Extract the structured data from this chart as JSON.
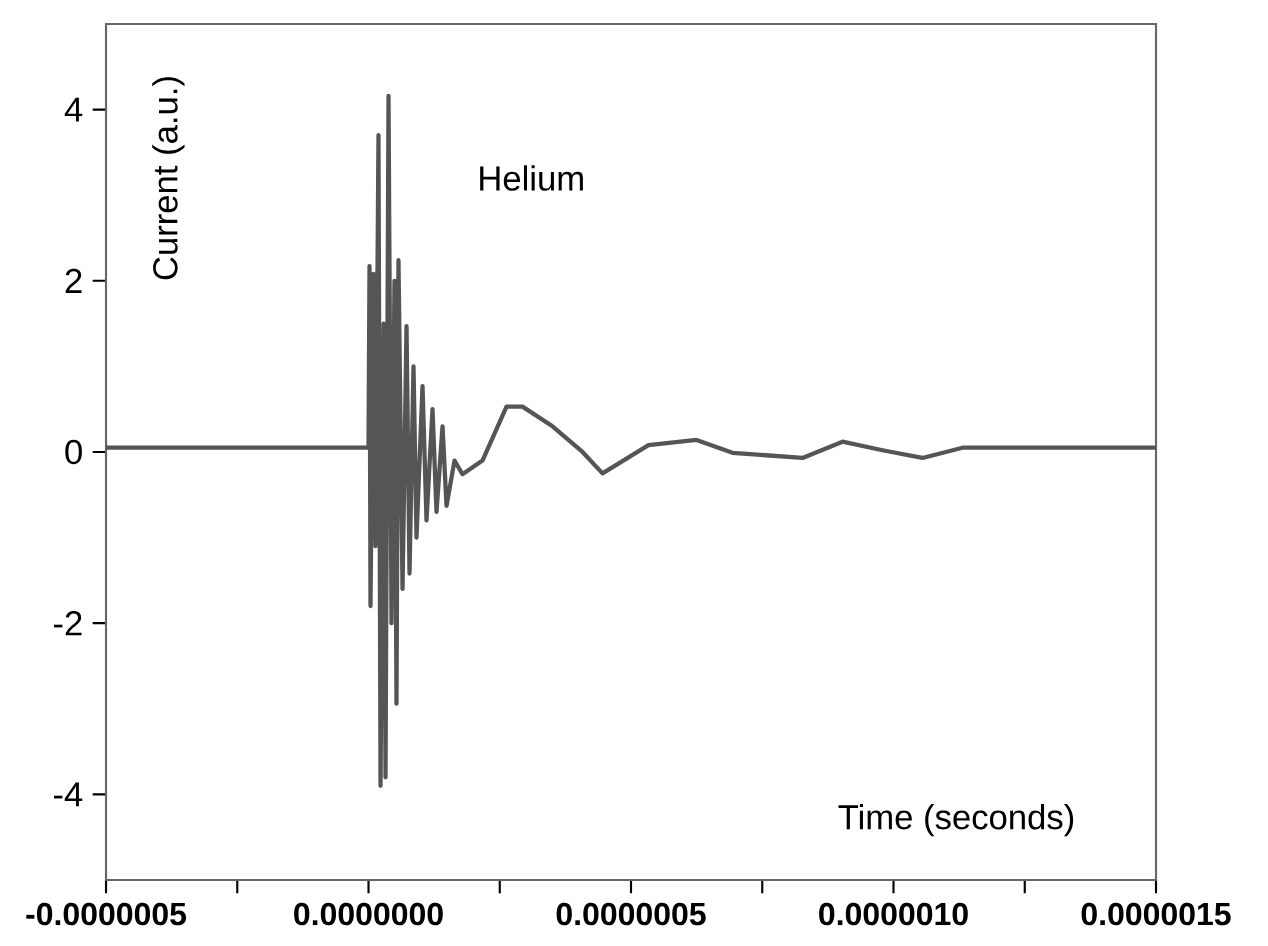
{
  "chart_data": {
    "type": "line",
    "xlabel": "Time (seconds)",
    "ylabel": "Current (a.u.)",
    "annotations": [
      "Helium"
    ],
    "xlim": [
      -5e-07,
      1.5e-06
    ],
    "ylim": [
      -5,
      5
    ],
    "xticks": [
      {
        "value": -5e-07,
        "label": "-0.0000005"
      },
      {
        "value": -2.5e-07,
        "label": null
      },
      {
        "value": 0,
        "label": "0.0000000"
      },
      {
        "value": 2.5e-07,
        "label": null
      },
      {
        "value": 5e-07,
        "label": "0.0000005"
      },
      {
        "value": 7.5e-07,
        "label": null
      },
      {
        "value": 1e-06,
        "label": "0.0000010"
      },
      {
        "value": 1.25e-06,
        "label": null
      },
      {
        "value": 1.5e-06,
        "label": "0.0000015"
      }
    ],
    "yticks": [
      -4,
      -2,
      0,
      2,
      4
    ],
    "marker": "none",
    "line_style": "solid",
    "series": [
      {
        "color": "#555555",
        "x": [
          -5e-07,
          0,
          1.9e-09,
          3.8e-09,
          9.5e-09,
          1.33e-08,
          1.9e-08,
          2.29e-08,
          2.86e-08,
          3.24e-08,
          3.81e-08,
          4.38e-08,
          4.95e-08,
          5.33e-08,
          5.71e-08,
          6.48e-08,
          7.24e-08,
          7.81e-08,
          8.57e-08,
          9.14e-08,
          1.029e-07,
          1.105e-07,
          1.219e-07,
          1.295e-07,
          1.41e-07,
          1.486e-07,
          1.638e-07,
          1.79e-07,
          2.171e-07,
          2.629e-07,
          2.933e-07,
          3.505e-07,
          4.076e-07,
          4.457e-07,
          5.333e-07,
          6.248e-07,
          6.933e-07,
          8.267e-07,
          9.029e-07,
          9.79e-07,
          1.0552e-06,
          1.1314e-06,
          1.5e-06
        ],
        "values": [
          0.05,
          0.05,
          2.17,
          -1.8,
          2.08,
          -1.1,
          3.7,
          -3.9,
          1.5,
          -3.8,
          4.16,
          -2.0,
          2.0,
          -2.94,
          2.24,
          -1.6,
          1.47,
          -1.42,
          1.0,
          -1.0,
          0.77,
          -0.8,
          0.5,
          -0.7,
          0.3,
          -0.63,
          -0.1,
          -0.26,
          -0.1,
          0.53,
          0.53,
          0.3,
          0.0,
          -0.25,
          0.08,
          0.14,
          -0.01,
          -0.07,
          0.12,
          0.02,
          -0.07,
          0.05,
          0.05
        ]
      }
    ]
  }
}
